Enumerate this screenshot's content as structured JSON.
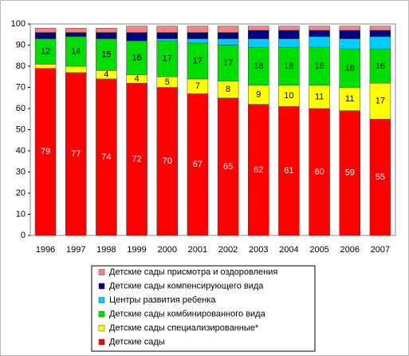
{
  "chart_data": {
    "type": "stacked_bar",
    "categories": [
      "1996",
      "1997",
      "1998",
      "1999",
      "2000",
      "2001",
      "2002",
      "2003",
      "2004",
      "2005",
      "2006",
      "2007"
    ],
    "ylim": [
      0,
      100
    ],
    "yticks": [
      0,
      10,
      20,
      30,
      40,
      50,
      60,
      70,
      80,
      90,
      100
    ],
    "legend": "bottom",
    "series": [
      {
        "name": "Детские сады",
        "color": "#ff0000",
        "data_labels": true,
        "values": [
          79,
          77,
          74,
          72,
          70,
          67,
          65,
          62,
          61,
          60,
          59,
          55
        ]
      },
      {
        "name": "Детские сады специализированные*",
        "color": "#ffff00",
        "values": [
          2,
          3,
          4,
          4,
          5,
          7,
          8,
          9,
          10,
          11,
          11,
          17
        ],
        "value_labels": [
          null,
          null,
          "4",
          "4",
          "5",
          "7",
          "8",
          "9",
          "10",
          "11",
          "11",
          "17"
        ]
      },
      {
        "name": "Детские сады комбинированного вида",
        "color": "#00dd00",
        "data_labels": true,
        "values": [
          12,
          14,
          15,
          16,
          17,
          17,
          17,
          18,
          18,
          18,
          18,
          16
        ]
      },
      {
        "name": "Центры развития ребенка",
        "color": "#00ccff",
        "values": [
          0,
          0,
          0,
          0,
          1,
          2,
          3,
          4,
          4,
          5,
          5,
          6
        ]
      },
      {
        "name": "Детские сады компенсирующего вида",
        "color": "#000080",
        "values": [
          3,
          2,
          3,
          4,
          3,
          3,
          3,
          4,
          4,
          3,
          4,
          3
        ]
      },
      {
        "name": "Детские сады присмотра и оздоровления",
        "color": "#ff8080",
        "values": [
          2,
          2,
          2,
          3,
          3,
          3,
          3,
          2,
          2,
          2,
          2,
          2
        ]
      }
    ]
  }
}
